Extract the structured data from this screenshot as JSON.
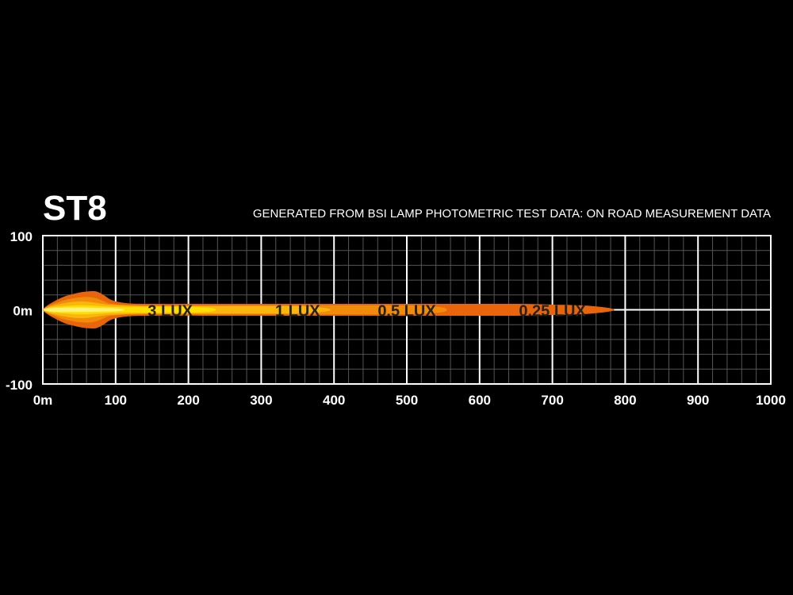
{
  "chart_data": {
    "type": "area",
    "title": "ST8",
    "subtitle": "GENERATED FROM BSI LAMP PHOTOMETRIC TEST DATA: ON ROAD MEASUREMENT DATA",
    "xlim": [
      0,
      1000
    ],
    "ylim": [
      -100,
      100
    ],
    "x_ticks": [
      "0m",
      "100",
      "200",
      "300",
      "400",
      "500",
      "600",
      "700",
      "800",
      "900",
      "1000"
    ],
    "y_ticks": [
      "100",
      "0m",
      "-100"
    ],
    "grid": true,
    "colors": {
      "background": "#000000",
      "grid_minor": "#555555",
      "grid_major": "#ffffff",
      "text": "#ffffff",
      "label_text": "#222222"
    },
    "series": [
      {
        "name": "0.25 LUX",
        "color": "#e9650c",
        "label_x": 700,
        "points": [
          [
            0,
            0
          ],
          [
            5,
            5
          ],
          [
            15,
            11
          ],
          [
            30,
            18
          ],
          [
            45,
            22
          ],
          [
            55,
            24
          ],
          [
            65,
            25
          ],
          [
            72,
            25
          ],
          [
            78,
            23
          ],
          [
            85,
            19
          ],
          [
            95,
            13
          ],
          [
            115,
            9
          ],
          [
            150,
            8
          ],
          [
            250,
            8
          ],
          [
            400,
            8
          ],
          [
            550,
            8
          ],
          [
            650,
            8
          ],
          [
            700,
            7
          ],
          [
            740,
            6
          ],
          [
            765,
            4
          ],
          [
            780,
            2
          ],
          [
            785,
            0
          ],
          [
            780,
            -2
          ],
          [
            765,
            -4
          ],
          [
            740,
            -6
          ],
          [
            700,
            -7
          ],
          [
            650,
            -8
          ],
          [
            550,
            -8
          ],
          [
            400,
            -8
          ],
          [
            250,
            -8
          ],
          [
            150,
            -8
          ],
          [
            115,
            -9
          ],
          [
            95,
            -13
          ],
          [
            85,
            -19
          ],
          [
            78,
            -23
          ],
          [
            72,
            -25
          ],
          [
            65,
            -25
          ],
          [
            55,
            -24
          ],
          [
            45,
            -22
          ],
          [
            30,
            -18
          ],
          [
            15,
            -11
          ],
          [
            5,
            -5
          ]
        ]
      },
      {
        "name": "0.5 LUX",
        "color": "#f08c0a",
        "label_x": 500,
        "points": [
          [
            0,
            0
          ],
          [
            5,
            4
          ],
          [
            15,
            8
          ],
          [
            30,
            13
          ],
          [
            45,
            16
          ],
          [
            55,
            17
          ],
          [
            65,
            17
          ],
          [
            75,
            15
          ],
          [
            85,
            11
          ],
          [
            95,
            8
          ],
          [
            130,
            6
          ],
          [
            200,
            6
          ],
          [
            300,
            6
          ],
          [
            420,
            6
          ],
          [
            490,
            6
          ],
          [
            530,
            5
          ],
          [
            550,
            3
          ],
          [
            555,
            0
          ],
          [
            550,
            -3
          ],
          [
            530,
            -5
          ],
          [
            490,
            -6
          ],
          [
            420,
            -6
          ],
          [
            300,
            -6
          ],
          [
            200,
            -6
          ],
          [
            130,
            -6
          ],
          [
            95,
            -8
          ],
          [
            85,
            -11
          ],
          [
            75,
            -15
          ],
          [
            65,
            -17
          ],
          [
            55,
            -17
          ],
          [
            45,
            -16
          ],
          [
            30,
            -13
          ],
          [
            15,
            -8
          ],
          [
            5,
            -4
          ]
        ]
      },
      {
        "name": "1 LUX",
        "color": "#f9b70e",
        "label_x": 350,
        "points": [
          [
            0,
            0
          ],
          [
            5,
            3
          ],
          [
            15,
            6
          ],
          [
            30,
            9
          ],
          [
            45,
            11
          ],
          [
            60,
            11
          ],
          [
            75,
            9
          ],
          [
            90,
            7
          ],
          [
            110,
            6
          ],
          [
            150,
            5
          ],
          [
            250,
            5
          ],
          [
            330,
            5
          ],
          [
            370,
            4
          ],
          [
            390,
            2
          ],
          [
            395,
            0
          ],
          [
            390,
            -2
          ],
          [
            370,
            -4
          ],
          [
            330,
            -5
          ],
          [
            250,
            -5
          ],
          [
            150,
            -5
          ],
          [
            110,
            -6
          ],
          [
            90,
            -7
          ],
          [
            75,
            -9
          ],
          [
            60,
            -11
          ],
          [
            45,
            -11
          ],
          [
            30,
            -9
          ],
          [
            15,
            -6
          ],
          [
            5,
            -3
          ]
        ]
      },
      {
        "name": "3 LUX",
        "color": "#fedd00",
        "label_x": 175,
        "points": [
          [
            0,
            0
          ],
          [
            5,
            2
          ],
          [
            15,
            4
          ],
          [
            30,
            5
          ],
          [
            45,
            6
          ],
          [
            60,
            6
          ],
          [
            80,
            5
          ],
          [
            100,
            4
          ],
          [
            150,
            4
          ],
          [
            200,
            4
          ],
          [
            225,
            3
          ],
          [
            235,
            2
          ],
          [
            238,
            0
          ],
          [
            235,
            -2
          ],
          [
            225,
            -3
          ],
          [
            200,
            -4
          ],
          [
            150,
            -4
          ],
          [
            100,
            -4
          ],
          [
            80,
            -5
          ],
          [
            60,
            -6
          ],
          [
            45,
            -6
          ],
          [
            30,
            -5
          ],
          [
            15,
            -4
          ],
          [
            5,
            -2
          ]
        ]
      },
      {
        "name": "",
        "color": "#fff17a",
        "label_x": null,
        "points": [
          [
            0,
            0
          ],
          [
            5,
            1.5
          ],
          [
            15,
            2.5
          ],
          [
            30,
            3
          ],
          [
            45,
            3
          ],
          [
            60,
            3
          ],
          [
            80,
            2.5
          ],
          [
            100,
            2
          ],
          [
            110,
            1
          ],
          [
            112,
            0
          ],
          [
            110,
            -1
          ],
          [
            100,
            -2
          ],
          [
            80,
            -2.5
          ],
          [
            60,
            -3
          ],
          [
            45,
            -3
          ],
          [
            30,
            -3
          ],
          [
            15,
            -2.5
          ],
          [
            5,
            -1.5
          ]
        ]
      }
    ]
  }
}
